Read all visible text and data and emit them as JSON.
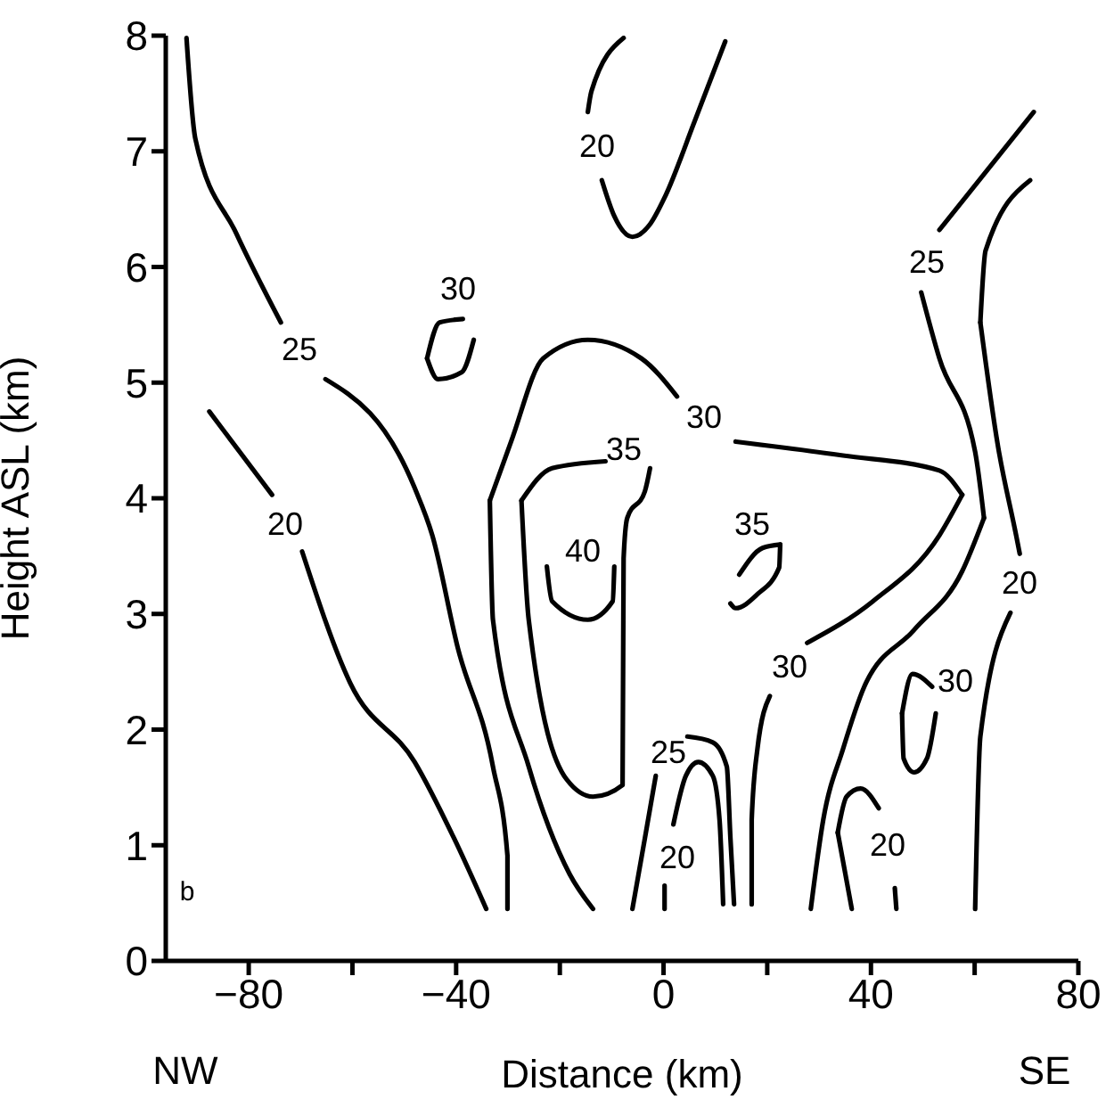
{
  "chart_data": {
    "type": "line",
    "xlabel": "Distance (km)",
    "ylabel": "Height ASL (km)",
    "xlim": [
      -96,
      80
    ],
    "ylim": [
      0,
      8
    ],
    "xticks": [
      -80,
      {
        "value": -60,
        "label": null
      },
      -40,
      {
        "value": -20,
        "label": null
      },
      0,
      {
        "value": 20,
        "label": null
      },
      40,
      {
        "value": 60,
        "label": null
      },
      80
    ],
    "yticks": [
      0,
      1,
      2,
      3,
      4,
      5,
      6,
      7,
      8
    ],
    "marker": "none",
    "line_style": "solid",
    "series": [
      {
        "color": "#000000",
        "x": [
          -73.8,
          -82.4,
          -90.3,
          -92.0
        ],
        "values": [
          5.52,
          6.29,
          7.11,
          7.98
        ]
      },
      {
        "color": "#000000",
        "x": [
          -65.2,
          -48.0,
          -44.6,
          -39.7,
          -32.9,
          -30.1,
          -30.1
        ],
        "values": [
          5.03,
          4.09,
          3.68,
          2.71,
          1.68,
          0.91,
          0.45
        ]
      },
      {
        "color": "#000000",
        "x": [
          -87.6,
          -75.5
        ],
        "values": [
          4.75,
          4.03
        ]
      },
      {
        "color": "#000000",
        "x": [
          -69.7,
          -60.4,
          -48.0,
          -40.4,
          -34.2
        ],
        "values": [
          3.54,
          2.4,
          1.72,
          1.06,
          0.45
        ]
      },
      {
        "color": "#000000",
        "x": [
          -45.6,
          -43.2,
          -38.7
        ],
        "values": [
          5.21,
          5.52,
          5.55
        ]
      },
      {
        "color": "#000000",
        "x": [
          -45.6,
          -43.5,
          -38.9,
          -36.6
        ],
        "values": [
          5.21,
          5.03,
          5.09,
          5.37
        ]
      },
      {
        "color": "#000000",
        "x": [
          -7.7,
          -13.9,
          -14.6
        ],
        "values": [
          7.98,
          7.52,
          7.34
        ]
      },
      {
        "color": "#000000",
        "x": [
          -11.9,
          -9.5,
          -6.0,
          -2.6,
          0.2,
          6.0,
          11.9
        ],
        "values": [
          6.75,
          6.44,
          6.26,
          6.37,
          6.6,
          7.26,
          7.95
        ]
      },
      {
        "color": "#000000",
        "x": [
          -27.4,
          -21.5,
          -11.2
        ],
        "values": [
          3.98,
          4.26,
          4.32
        ]
      },
      {
        "color": "#000000",
        "x": [
          -27.4,
          -26.0,
          -18.7,
          -13.6,
          -7.9,
          -7.7,
          -7.0,
          -3.6,
          -2.6
        ],
        "values": [
          3.98,
          2.95,
          1.57,
          1.42,
          1.52,
          3.48,
          3.83,
          4.06,
          4.26
        ]
      },
      {
        "color": "#000000",
        "x": [
          -33.5,
          -29.4,
          -23.2,
          -14.6,
          -4.3,
          2.6
        ],
        "values": [
          3.98,
          4.49,
          5.21,
          5.37,
          5.21,
          4.88
        ]
      },
      {
        "color": "#000000",
        "x": [
          -33.5,
          -32.9,
          -26.0,
          -18.1,
          -13.6
        ],
        "values": [
          3.98,
          2.95,
          1.68,
          0.75,
          0.45
        ]
      },
      {
        "color": "#000000",
        "x": [
          13.9,
          34.6,
          53.2,
          57.6
        ],
        "values": [
          4.49,
          4.37,
          4.24,
          4.03
        ]
      },
      {
        "color": "#000000",
        "x": [
          27.7,
          40.4,
          53.2,
          57.6
        ],
        "values": [
          2.75,
          3.11,
          3.68,
          4.03
        ]
      },
      {
        "color": "#000000",
        "x": [
          20.5,
          18.1,
          17.0,
          17.0
        ],
        "values": [
          2.29,
          1.83,
          1.22,
          0.49
        ]
      },
      {
        "color": "#000000",
        "x": [
          14.6,
          19.1,
          22.5
        ],
        "values": [
          3.34,
          3.57,
          3.6
        ]
      },
      {
        "color": "#000000",
        "x": [
          12.9,
          13.9,
          18.1,
          22.3,
          22.5
        ],
        "values": [
          3.09,
          3.05,
          3.17,
          3.4,
          3.6
        ]
      },
      {
        "color": "#000000",
        "x": [
          -22.5,
          -21.5,
          -14.6,
          -9.8,
          -9.5
        ],
        "values": [
          3.41,
          3.11,
          2.95,
          3.11,
          3.41
        ]
      },
      {
        "color": "#000000",
        "x": [
          -1.5,
          -3.6,
          -6.0
        ],
        "values": [
          1.6,
          1.06,
          0.45
        ]
      },
      {
        "color": "#000000",
        "x": [
          4.6,
          9.5,
          12.2,
          12.9,
          13.6
        ],
        "values": [
          1.94,
          1.89,
          1.68,
          1.06,
          0.49
        ]
      },
      {
        "color": "#000000",
        "x": [
          1.9,
          4.3,
          6.7,
          9.5,
          10.8,
          11.5
        ],
        "values": [
          1.18,
          1.6,
          1.72,
          1.6,
          1.22,
          0.49
        ]
      },
      {
        "color": "#000000",
        "x": [
          0.2,
          0.2
        ],
        "values": [
          0.65,
          0.45
        ]
      },
      {
        "color": "#000000",
        "x": [
          53.2,
          71.4
        ],
        "values": [
          6.32,
          7.34
        ]
      },
      {
        "color": "#000000",
        "x": [
          49.7,
          53.2,
          60.1,
          61.8
        ],
        "values": [
          5.78,
          5.21,
          4.4,
          3.83
        ]
      },
      {
        "color": "#000000",
        "x": [
          28.4,
          30.8,
          34.6,
          38.7,
          48.3,
          57.6,
          61.8
        ],
        "values": [
          0.45,
          1.22,
          1.83,
          2.37,
          2.86,
          3.37,
          3.83
        ]
      },
      {
        "color": "#000000",
        "x": [
          61.1,
          62.1,
          70.7
        ],
        "values": [
          5.52,
          6.14,
          6.75
        ]
      },
      {
        "color": "#000000",
        "x": [
          61.1,
          64.5,
          68.0,
          68.7
        ],
        "values": [
          5.52,
          4.45,
          3.68,
          3.52
        ]
      },
      {
        "color": "#000000",
        "x": [
          66.9,
          61.1,
          60.1
        ],
        "values": [
          3.01,
          1.94,
          0.45
        ]
      },
      {
        "color": "#000000",
        "x": [
          46.0,
          48.0,
          51.8
        ],
        "values": [
          2.14,
          2.48,
          2.37
        ]
      },
      {
        "color": "#000000",
        "x": [
          46.0,
          46.3,
          48.3,
          50.8,
          52.5
        ],
        "values": [
          2.14,
          1.75,
          1.63,
          1.75,
          2.14
        ]
      },
      {
        "color": "#000000",
        "x": [
          33.6,
          36.3
        ],
        "values": [
          1.11,
          0.45
        ]
      },
      {
        "color": "#000000",
        "x": [
          33.6,
          35.3,
          38.0,
          41.5
        ],
        "values": [
          1.11,
          1.42,
          1.49,
          1.32
        ]
      },
      {
        "color": "#000000",
        "x": [
          44.6,
          44.9
        ],
        "values": [
          0.63,
          0.45
        ]
      }
    ],
    "annotations": [
      "b",
      "NW",
      "SE",
      "25",
      "20",
      "30",
      "20",
      "35",
      "40",
      "30",
      "35",
      "30",
      "25",
      "20",
      "25",
      "20",
      "30",
      "20"
    ]
  }
}
